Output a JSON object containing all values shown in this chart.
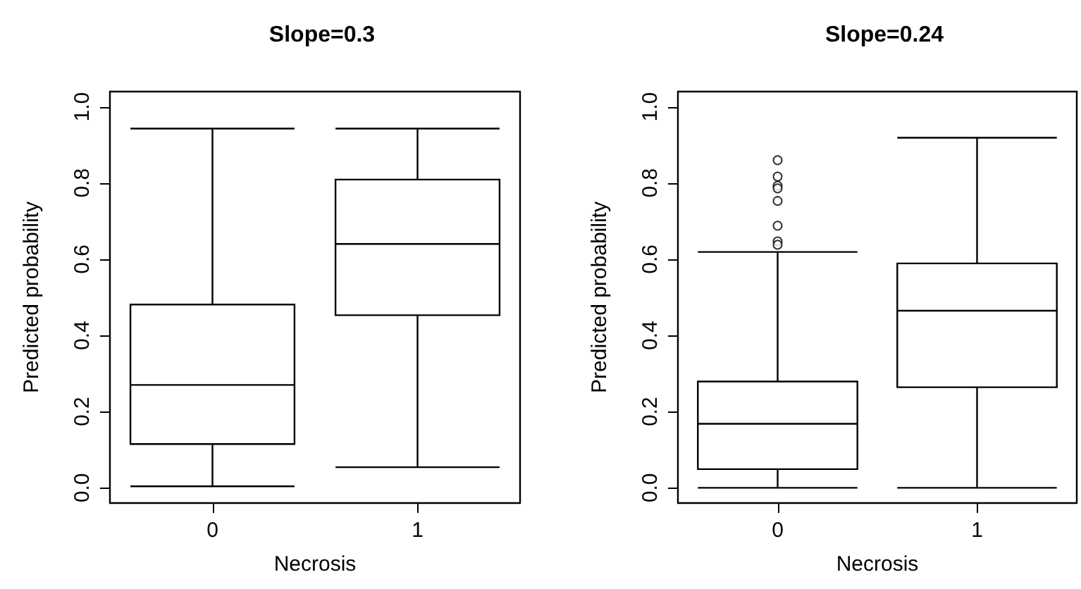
{
  "chart_data": [
    {
      "type": "box",
      "title": "Slope=0.3",
      "xlabel": "Necrosis",
      "ylabel": "Predicted probability",
      "categories": [
        "0",
        "1"
      ],
      "boxes": [
        {
          "low": 0.004,
          "q1": 0.115,
          "median": 0.27,
          "q3": 0.481,
          "high": 0.943
        },
        {
          "low": 0.054,
          "q1": 0.453,
          "median": 0.64,
          "q3": 0.809,
          "high": 0.943
        }
      ],
      "ylim": [
        -0.04,
        1.04
      ],
      "yticks": [
        {
          "value": 0,
          "label": "0.0"
        },
        {
          "value": 0.2,
          "label": "0.2"
        },
        {
          "value": 0.4,
          "label": "0.4"
        },
        {
          "value": 0.6,
          "label": "0.6"
        },
        {
          "value": 0.8,
          "label": "0.8"
        },
        {
          "value": 1,
          "label": "1.0"
        }
      ]
    },
    {
      "type": "box",
      "title": "Slope=0.24",
      "xlabel": "Necrosis",
      "ylabel": "Predicted probability",
      "categories": [
        "0",
        "1"
      ],
      "boxes": [
        {
          "low": 0,
          "q1": 0.049,
          "median": 0.168,
          "q3": 0.279,
          "high": 0.619,
          "outliers": [
            0.86,
            0.817,
            0.793,
            0.786,
            0.753,
            0.688,
            0.647,
            0.638
          ]
        },
        {
          "low": 0,
          "q1": 0.264,
          "median": 0.465,
          "q3": 0.589,
          "high": 0.919
        }
      ],
      "ylim": [
        -0.04,
        1.04
      ],
      "yticks": [
        {
          "value": 0,
          "label": "0.0"
        },
        {
          "value": 0.2,
          "label": "0.2"
        },
        {
          "value": 0.4,
          "label": "0.4"
        },
        {
          "value": 0.6,
          "label": "0.6"
        },
        {
          "value": 0.8,
          "label": "0.8"
        },
        {
          "value": 1,
          "label": "1.0"
        }
      ]
    }
  ]
}
